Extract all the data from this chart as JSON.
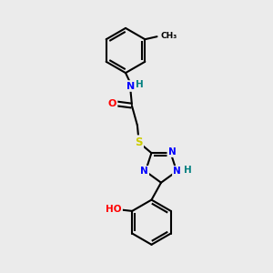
{
  "bg_color": "#ebebeb",
  "atom_colors": {
    "C": "#000000",
    "N": "#0000ff",
    "O": "#ff0000",
    "S": "#cccc00",
    "H": "#008080"
  },
  "bond_color": "#000000",
  "bond_width": 1.5
}
